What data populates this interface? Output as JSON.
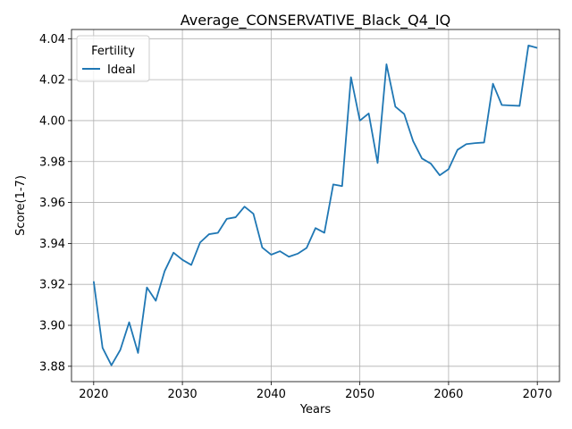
{
  "chart_data": {
    "type": "line",
    "title": "Average_CONSERVATIVE_Black_Q4_IQ",
    "xlabel": "Years",
    "ylabel": "Score(1-7)",
    "xlim": [
      2017.5,
      2072.5
    ],
    "ylim": [
      3.8725,
      4.0445
    ],
    "xticks": [
      2020,
      2030,
      2040,
      2050,
      2060,
      2070
    ],
    "yticks": [
      3.88,
      3.9,
      3.92,
      3.94,
      3.96,
      3.98,
      4.0,
      4.02,
      4.04
    ],
    "ytick_labels": [
      "3.88",
      "3.90",
      "3.92",
      "3.94",
      "3.96",
      "3.98",
      "4.00",
      "4.02",
      "4.04"
    ],
    "grid": true,
    "legend": {
      "title": "Fertility",
      "placement": "upper-left"
    },
    "series": [
      {
        "name": "Ideal",
        "color": "#1f77b4",
        "x": [
          2020,
          2021,
          2022,
          2023,
          2024,
          2025,
          2026,
          2027,
          2028,
          2029,
          2030,
          2031,
          2032,
          2033,
          2034,
          2035,
          2036,
          2037,
          2038,
          2039,
          2040,
          2041,
          2042,
          2043,
          2044,
          2045,
          2046,
          2047,
          2048,
          2049,
          2050,
          2051,
          2052,
          2053,
          2054,
          2055,
          2056,
          2057,
          2058,
          2059,
          2060,
          2061,
          2062,
          2063,
          2064,
          2065,
          2066,
          2067,
          2068,
          2069,
          2070
        ],
        "y": [
          3.9215,
          3.889,
          3.8805,
          3.888,
          3.9015,
          3.8865,
          3.9185,
          3.912,
          3.9265,
          3.9355,
          3.932,
          3.9295,
          3.9405,
          3.9445,
          3.9452,
          3.952,
          3.9528,
          3.958,
          3.9545,
          3.938,
          3.9345,
          3.9362,
          3.9335,
          3.935,
          3.9378,
          3.9475,
          3.9452,
          3.9688,
          3.968,
          4.0212,
          4.0,
          4.0035,
          3.9793,
          4.0275,
          4.0068,
          4.0032,
          3.99,
          3.9815,
          3.979,
          3.9733,
          3.9763,
          3.9857,
          3.9885,
          3.989,
          3.9893,
          4.018,
          4.0076,
          4.0074,
          4.0072,
          4.0367,
          4.0355
        ]
      }
    ]
  }
}
